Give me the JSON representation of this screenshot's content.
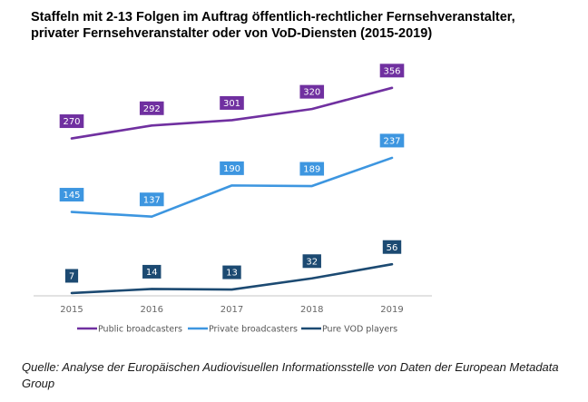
{
  "title_lines": [
    "Staffeln mit 2-13 Folgen im Auftrag öffentlich-rechtlicher Fernsehveranstalter,",
    "privater Fernsehveranstalter oder von VoD-Diensten (2015-2019)"
  ],
  "source": "Quelle: Analyse der Europäischen Audiovisuellen Informationsstelle von Daten der European Metadata Group",
  "chart_data": {
    "type": "line",
    "title": "Staffeln mit 2-13 Folgen im Auftrag öffentlich-rechtlicher Fernsehveranstalter, privater Fernsehveranstalter oder von VoD-Diensten (2015-2019)",
    "xlabel": "",
    "ylabel": "",
    "x": [
      "2015",
      "2016",
      "2017",
      "2018",
      "2019"
    ],
    "ylim": [
      0,
      360
    ],
    "grid": false,
    "legend_position": "bottom",
    "data_labels": true,
    "series": [
      {
        "name": "Public broadcasters",
        "color": "#7030a0",
        "values": [
          270,
          292,
          301,
          320,
          356
        ]
      },
      {
        "name": "Private broadcasters",
        "color": "#3d96e0",
        "values": [
          145,
          137,
          190,
          189,
          237
        ]
      },
      {
        "name": "Pure VOD players",
        "color": "#1c4a72",
        "values": [
          7,
          14,
          13,
          32,
          56
        ]
      }
    ]
  }
}
